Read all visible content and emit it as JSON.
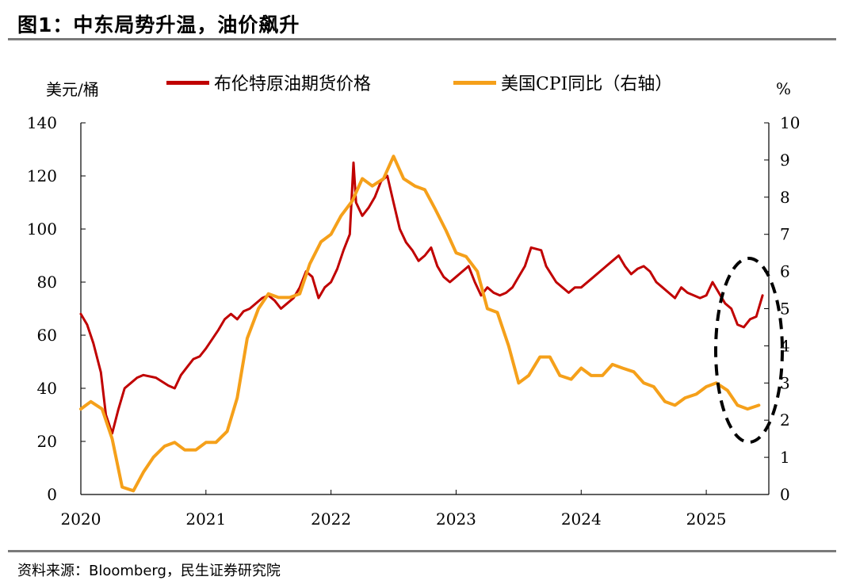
{
  "header": {
    "title": "图1：中东局势升温，油价飙升"
  },
  "footer": {
    "source": "资料来源：Bloomberg，民生证券研究院"
  },
  "chart_data": {
    "type": "line",
    "title": "图1：中东局势升温，油价飙升",
    "y_left_label": "美元/桶",
    "y_right_label": "%",
    "y_left_range": [
      0,
      140
    ],
    "y_right_range": [
      0,
      10
    ],
    "y_left_ticks": [
      0,
      20,
      40,
      60,
      80,
      100,
      120,
      140
    ],
    "y_right_ticks": [
      0,
      1,
      2,
      3,
      4,
      5,
      6,
      7,
      8,
      9,
      10
    ],
    "x_range": [
      2020.0,
      2025.5
    ],
    "x_ticks": [
      "2020",
      "2021",
      "2022",
      "2023",
      "2024",
      "2025"
    ],
    "annotation": "dashed ellipse highlighting the 2025 oil price spike",
    "series": [
      {
        "name": "布伦特原油期货价格",
        "axis": "left",
        "color": "#c00000",
        "x": [
          2020.0,
          2020.05,
          2020.1,
          2020.16,
          2020.2,
          2020.25,
          2020.3,
          2020.35,
          2020.4,
          2020.45,
          2020.5,
          2020.6,
          2020.7,
          2020.75,
          2020.8,
          2020.85,
          2020.9,
          2020.95,
          2021.0,
          2021.1,
          2021.15,
          2021.2,
          2021.25,
          2021.3,
          2021.35,
          2021.45,
          2021.5,
          2021.55,
          2021.6,
          2021.65,
          2021.7,
          2021.75,
          2021.8,
          2021.85,
          2021.9,
          2021.95,
          2022.0,
          2022.05,
          2022.1,
          2022.15,
          2022.18,
          2022.2,
          2022.25,
          2022.3,
          2022.35,
          2022.4,
          2022.45,
          2022.5,
          2022.55,
          2022.6,
          2022.65,
          2022.7,
          2022.75,
          2022.8,
          2022.85,
          2022.9,
          2022.95,
          2023.0,
          2023.05,
          2023.1,
          2023.15,
          2023.2,
          2023.25,
          2023.3,
          2023.35,
          2023.4,
          2023.45,
          2023.5,
          2023.55,
          2023.6,
          2023.68,
          2023.72,
          2023.8,
          2023.85,
          2023.9,
          2023.95,
          2024.0,
          2024.1,
          2024.2,
          2024.25,
          2024.3,
          2024.35,
          2024.4,
          2024.45,
          2024.5,
          2024.55,
          2024.6,
          2024.65,
          2024.7,
          2024.75,
          2024.8,
          2024.85,
          2024.9,
          2024.95,
          2025.0,
          2025.05,
          2025.1,
          2025.15,
          2025.2,
          2025.25,
          2025.3,
          2025.35,
          2025.4,
          2025.45
        ],
        "values": [
          68,
          64,
          57,
          46,
          30,
          23,
          32,
          40,
          42,
          44,
          45,
          44,
          41,
          40,
          45,
          48,
          51,
          52,
          55,
          62,
          66,
          68,
          66,
          69,
          70,
          74,
          75,
          73,
          70,
          72,
          74,
          78,
          84,
          82,
          74,
          78,
          80,
          85,
          92,
          98,
          125,
          110,
          105,
          108,
          112,
          118,
          120,
          110,
          100,
          95,
          92,
          88,
          90,
          93,
          86,
          82,
          80,
          82,
          84,
          86,
          80,
          75,
          78,
          76,
          75,
          76,
          78,
          82,
          86,
          93,
          92,
          86,
          80,
          78,
          76,
          78,
          78,
          82,
          86,
          88,
          90,
          86,
          83,
          85,
          86,
          84,
          80,
          78,
          76,
          74,
          78,
          76,
          75,
          74,
          75,
          80,
          76,
          72,
          70,
          64,
          63,
          66,
          67,
          75
        ]
      },
      {
        "name": "美国CPI同比（右轴）",
        "axis": "right",
        "color": "#f5a01a",
        "x": [
          2020.0,
          2020.08,
          2020.17,
          2020.25,
          2020.33,
          2020.42,
          2020.5,
          2020.58,
          2020.67,
          2020.75,
          2020.83,
          2020.92,
          2021.0,
          2021.08,
          2021.17,
          2021.25,
          2021.33,
          2021.42,
          2021.5,
          2021.58,
          2021.67,
          2021.75,
          2021.83,
          2021.92,
          2022.0,
          2022.08,
          2022.17,
          2022.25,
          2022.33,
          2022.42,
          2022.5,
          2022.58,
          2022.67,
          2022.75,
          2022.83,
          2022.92,
          2023.0,
          2023.08,
          2023.17,
          2023.25,
          2023.33,
          2023.42,
          2023.5,
          2023.58,
          2023.67,
          2023.75,
          2023.83,
          2023.92,
          2024.0,
          2024.08,
          2024.17,
          2024.25,
          2024.33,
          2024.42,
          2024.5,
          2024.58,
          2024.67,
          2024.75,
          2024.83,
          2024.92,
          2025.0,
          2025.08,
          2025.17,
          2025.25,
          2025.33,
          2025.42
        ],
        "values": [
          2.3,
          2.5,
          2.3,
          1.5,
          0.2,
          0.1,
          0.6,
          1.0,
          1.3,
          1.4,
          1.2,
          1.2,
          1.4,
          1.4,
          1.7,
          2.6,
          4.2,
          5.0,
          5.4,
          5.3,
          5.3,
          5.4,
          6.2,
          6.8,
          7.0,
          7.5,
          7.9,
          8.5,
          8.3,
          8.5,
          9.1,
          8.5,
          8.3,
          8.2,
          7.7,
          7.1,
          6.5,
          6.4,
          6.0,
          5.0,
          4.9,
          4.0,
          3.0,
          3.2,
          3.7,
          3.7,
          3.2,
          3.1,
          3.4,
          3.2,
          3.2,
          3.5,
          3.4,
          3.3,
          3.0,
          2.9,
          2.5,
          2.4,
          2.6,
          2.7,
          2.9,
          3.0,
          2.8,
          2.4,
          2.3,
          2.4
        ]
      }
    ]
  }
}
